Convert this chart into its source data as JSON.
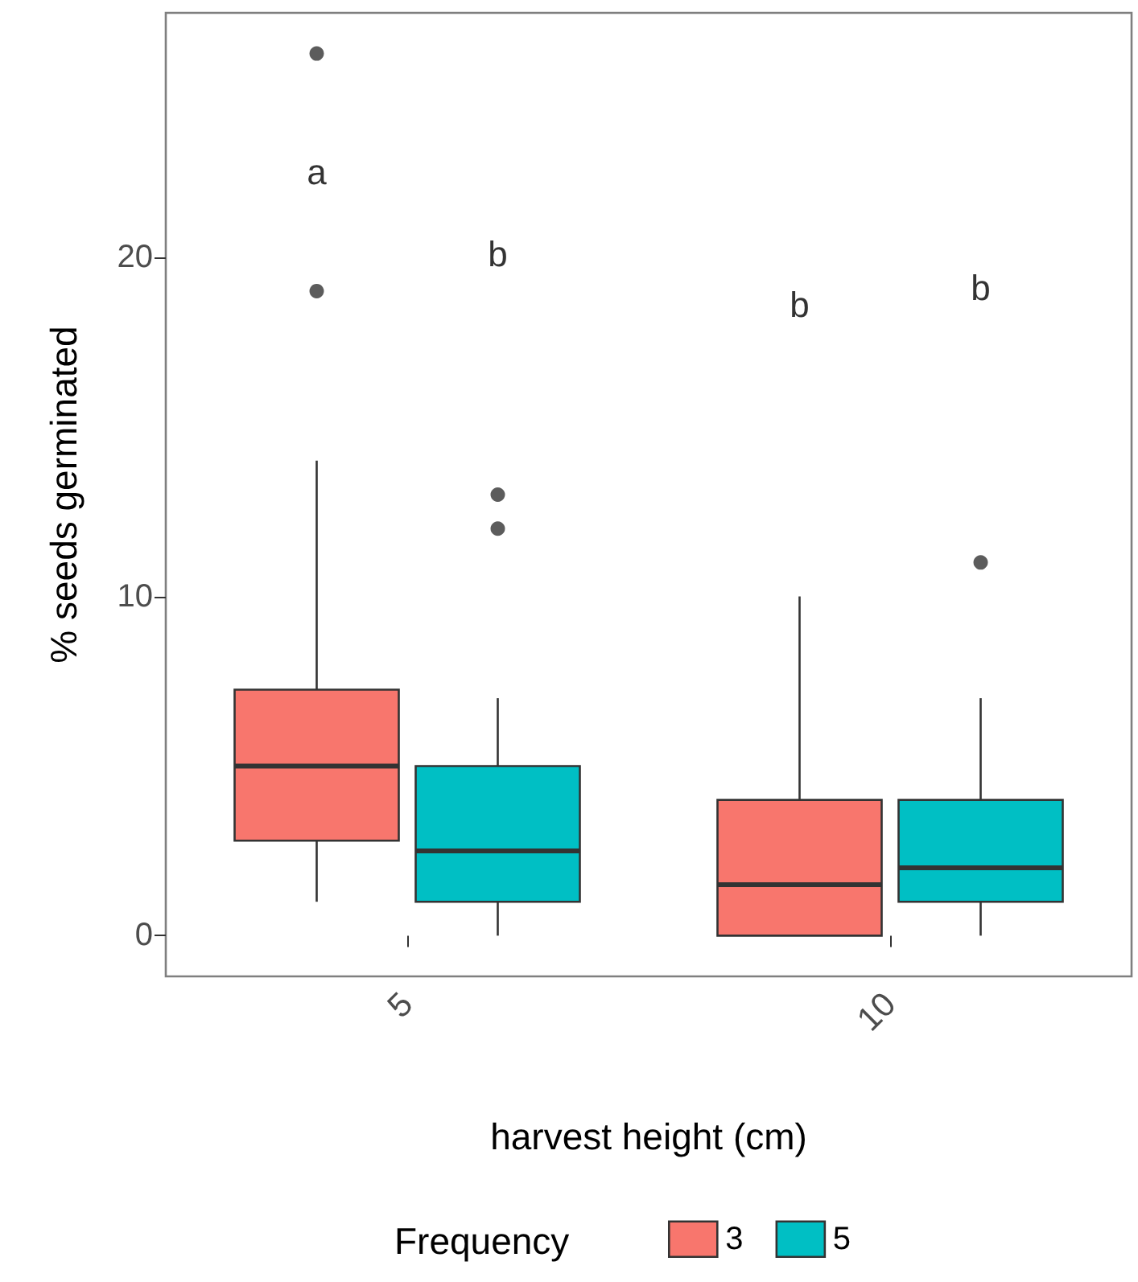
{
  "chart_data": {
    "type": "box",
    "xlabel": "harvest height (cm)",
    "ylabel": "% seeds germinated",
    "legend_title": "Frequency",
    "legend": "bottom",
    "grid": false,
    "categories": [
      "5",
      "10"
    ],
    "series": [
      {
        "name": "3",
        "color": "#f8766d",
        "boxes": [
          {
            "low": 1,
            "q1": 2.8,
            "median": 5,
            "q3": 7.25,
            "high": 14,
            "outliers": [
              19,
              26
            ]
          },
          {
            "low": 0,
            "q1": 0,
            "median": 1.5,
            "q3": 4,
            "high": 10
          }
        ]
      },
      {
        "name": "5",
        "color": "#00bfc4",
        "boxes": [
          {
            "low": 0,
            "q1": 1,
            "median": 2.5,
            "q3": 5,
            "high": 7,
            "outliers": [
              12,
              13
            ]
          },
          {
            "low": 0,
            "q1": 1,
            "median": 2,
            "q3": 4,
            "high": 7,
            "outliers": [
              11
            ]
          }
        ]
      }
    ],
    "ylim": [
      -1.2,
      27.2
    ],
    "yticks": [
      0,
      10,
      20
    ],
    "annotations": [
      "a",
      "b",
      "b",
      "b"
    ]
  }
}
